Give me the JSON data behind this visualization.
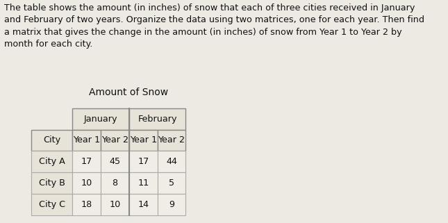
{
  "paragraph_text": "The table shows the amount (in inches) of snow that each of three cities received in January\nand February of two years. Organize the data using two matrices, one for each year. Then find\na matrix that gives the change in the amount (in inches) of snow from Year 1 to Year 2 by\nmonth for each city.",
  "table_title": "Amount of Snow",
  "col_headers_row2": [
    "City",
    "Year 1",
    "Year 2",
    "Year 1",
    "Year 2"
  ],
  "rows": [
    [
      "City A",
      "17",
      "45",
      "17",
      "44"
    ],
    [
      "City B",
      "10",
      "8",
      "11",
      "5"
    ],
    [
      "City C",
      "18",
      "10",
      "14",
      "9"
    ]
  ],
  "bg_color": "#ede9e3",
  "table_bg_light": "#f5f2ec",
  "header_bg": "#e8e3d8",
  "cell_bg": "#f0ede6",
  "border_color_light": "#aaaaaa",
  "border_color_dark": "#888888",
  "text_color": "#111111",
  "paragraph_font_size": 9.2,
  "title_font_size": 10.0,
  "cell_font_size": 9.2
}
